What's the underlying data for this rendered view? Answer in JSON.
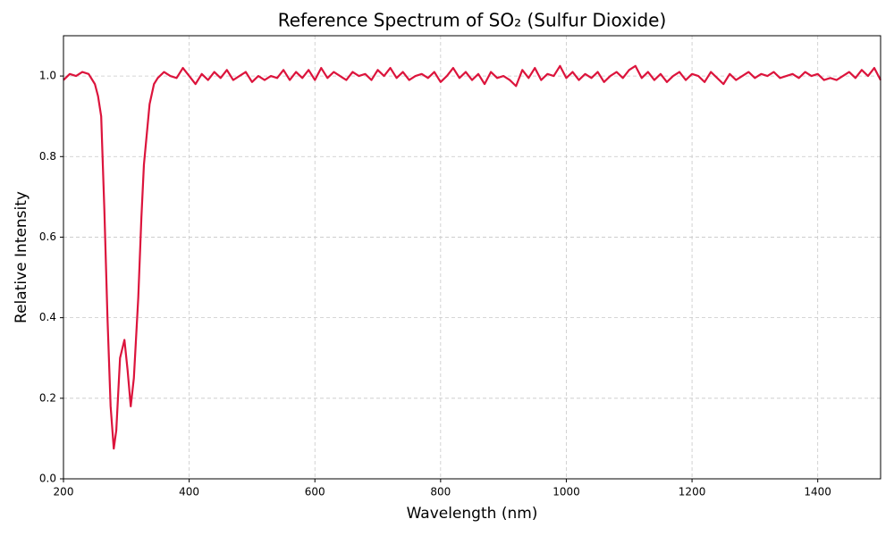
{
  "chart_data": {
    "type": "line",
    "title": "Reference Spectrum of SO₂ (Sulfur Dioxide)",
    "x_label": "Wavelength (nm)",
    "y_label": "Relative Intensity",
    "x": [
      200,
      210,
      220,
      230,
      240,
      250,
      255,
      260,
      265,
      270,
      275,
      280,
      284,
      290,
      297,
      302,
      307,
      312,
      319,
      324,
      328,
      337,
      344,
      350,
      360,
      370,
      380,
      390,
      400,
      410,
      420,
      430,
      440,
      450,
      460,
      470,
      480,
      490,
      500,
      510,
      520,
      530,
      540,
      550,
      560,
      570,
      580,
      590,
      600,
      610,
      620,
      630,
      640,
      650,
      660,
      670,
      680,
      690,
      700,
      710,
      720,
      730,
      740,
      750,
      760,
      770,
      780,
      790,
      800,
      810,
      820,
      830,
      840,
      850,
      860,
      870,
      880,
      890,
      900,
      910,
      920,
      930,
      940,
      950,
      960,
      970,
      980,
      990,
      1000,
      1010,
      1020,
      1030,
      1040,
      1050,
      1060,
      1070,
      1080,
      1090,
      1100,
      1110,
      1120,
      1130,
      1140,
      1150,
      1160,
      1170,
      1180,
      1190,
      1200,
      1210,
      1220,
      1230,
      1240,
      1250,
      1260,
      1270,
      1280,
      1290,
      1300,
      1310,
      1320,
      1330,
      1340,
      1350,
      1360,
      1370,
      1380,
      1390,
      1400,
      1410,
      1420,
      1430,
      1440,
      1450,
      1460,
      1470,
      1480,
      1490,
      1500
    ],
    "series": [
      {
        "name": "SO₂",
        "color": "#dc143c",
        "values": [
          0.99,
          1.005,
          1.0,
          1.01,
          1.005,
          0.98,
          0.95,
          0.9,
          0.67,
          0.4,
          0.18,
          0.075,
          0.12,
          0.3,
          0.345,
          0.27,
          0.18,
          0.25,
          0.45,
          0.65,
          0.78,
          0.93,
          0.98,
          0.995,
          1.01,
          1.0,
          0.995,
          1.02,
          1.0,
          0.98,
          1.005,
          0.99,
          1.01,
          0.995,
          1.015,
          0.99,
          1.0,
          1.01,
          0.985,
          1.0,
          0.99,
          1.0,
          0.995,
          1.015,
          0.99,
          1.01,
          0.995,
          1.015,
          0.99,
          1.02,
          0.995,
          1.01,
          1.0,
          0.99,
          1.01,
          1.0,
          1.005,
          0.99,
          1.015,
          1.0,
          1.02,
          0.995,
          1.01,
          0.99,
          1.0,
          1.005,
          0.995,
          1.01,
          0.985,
          1.0,
          1.02,
          0.995,
          1.01,
          0.99,
          1.005,
          0.98,
          1.01,
          0.995,
          1.0,
          0.99,
          0.975,
          1.015,
          0.995,
          1.02,
          0.99,
          1.005,
          1.0,
          1.025,
          0.995,
          1.01,
          0.99,
          1.005,
          0.995,
          1.01,
          0.985,
          1.0,
          1.01,
          0.995,
          1.015,
          1.025,
          0.995,
          1.01,
          0.99,
          1.005,
          0.985,
          1.0,
          1.01,
          0.99,
          1.005,
          1.0,
          0.985,
          1.01,
          0.995,
          0.98,
          1.005,
          0.99,
          1.0,
          1.01,
          0.995,
          1.005,
          1.0,
          1.01,
          0.995,
          1.0,
          1.005,
          0.995,
          1.01,
          1.0,
          1.005,
          0.99,
          0.995,
          0.99,
          1.0,
          1.01,
          0.995,
          1.015,
          1.0,
          1.02,
          0.99
        ]
      }
    ],
    "xlim": [
      200,
      1500
    ],
    "ylim": [
      0,
      1.1
    ],
    "xticks": [
      200,
      400,
      600,
      800,
      1000,
      1200,
      1400
    ],
    "yticks": [
      {
        "value": 0,
        "label": "0.0"
      },
      0.2,
      0.4,
      0.6,
      0.8,
      {
        "value": 1,
        "label": "1.0"
      }
    ],
    "grid": true
  }
}
